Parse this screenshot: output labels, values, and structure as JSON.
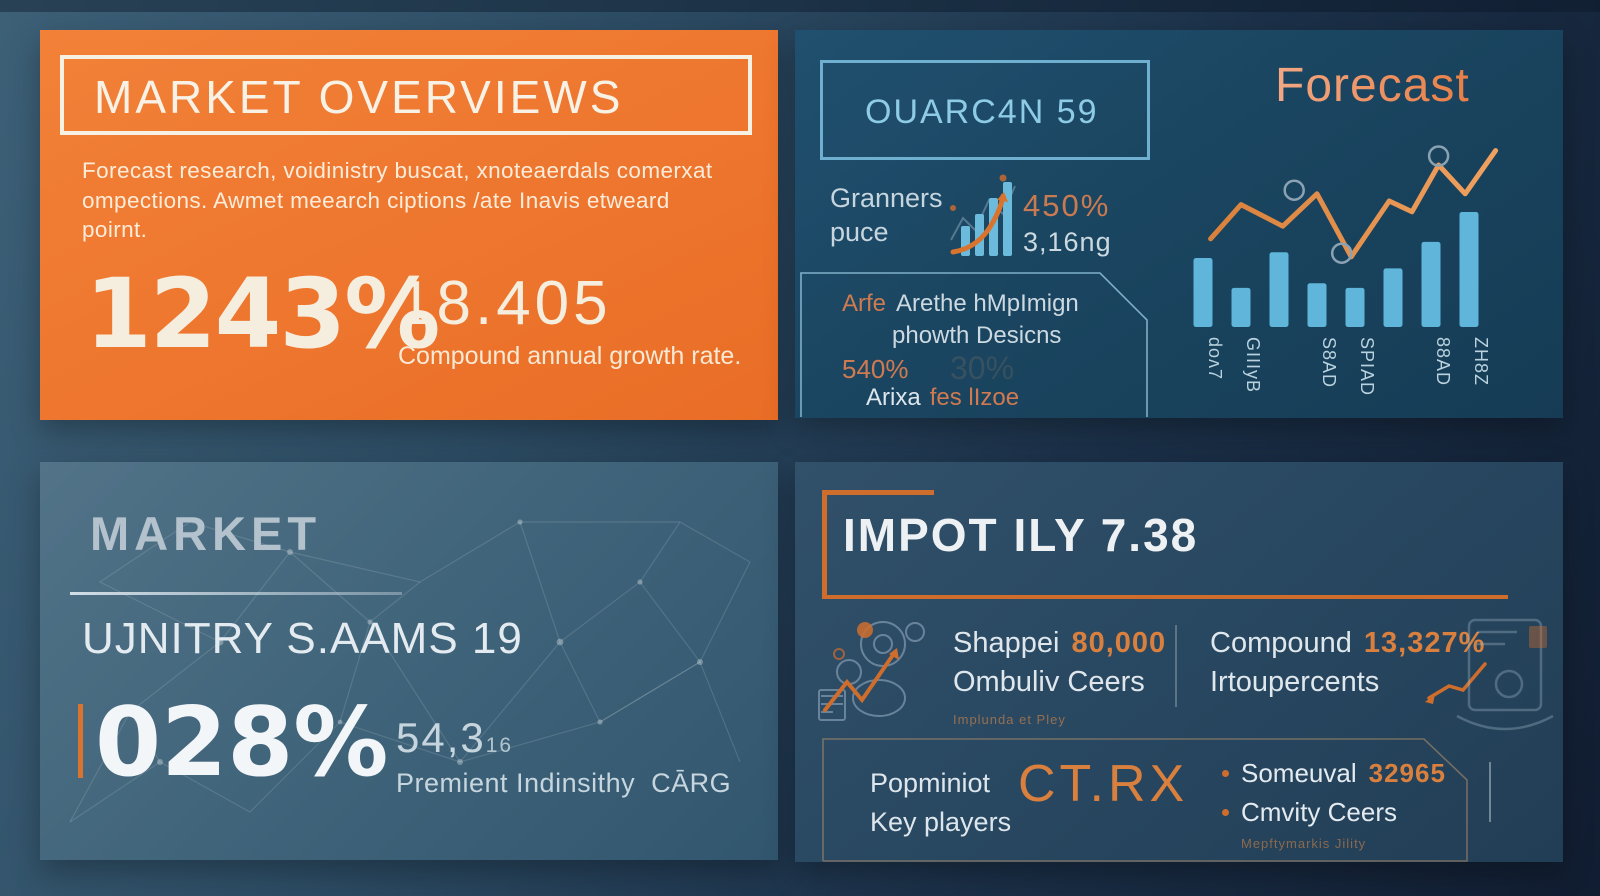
{
  "colors": {
    "orange_panel": "#ee762e",
    "accent_orange": "#d9742f",
    "light_blue": "#8ccae6",
    "bar_blue": "#5fb6da",
    "cream": "#f7f1e3"
  },
  "panels": {
    "market_overview": {
      "title": "MARKET OVERVIEWS",
      "body": "Forecast research, voidinistry buscat, xnoteaerdals comerxat ompections. Awmet meearch ciptions /ate Inavis etweard poirnt.",
      "stat_primary": "1243%",
      "stat_secondary": "18.405",
      "stat_caption": "Compound annual growth rate."
    },
    "quarterly_forecast": {
      "box_title": "OUARC4N 59",
      "label_line1": "Granners",
      "label_line2": "puce",
      "growth_value": "450%",
      "growth_sub": "3,16ng",
      "note_lead": "Arfe",
      "note_line1": "Arethe hMpImign",
      "note_line2": "phowth Desicns",
      "note_value": "540%",
      "note_ghost": "30%",
      "note_line3_gray": "Arixa",
      "note_line3_orange": "fes lIzoe",
      "chart_title": "Forecast"
    },
    "market_share": {
      "title": "MARKET",
      "subtitle": "UJNITRY S.AAMS 19",
      "stat_primary": "028%",
      "stat_secondary": "54,3",
      "stat_secondary_sub": "16",
      "caption": "Premient Indinsithy  CĀRG"
    },
    "impact": {
      "title": "IMPOT ILY 7.38",
      "stat1_label": "Shappei",
      "stat1_value": "80,000",
      "stat1_line2": "Ombuliv Ceers",
      "stat1_note": "Implunda et Pley",
      "stat2_label": "Compound",
      "stat2_value": "13,327%",
      "stat2_line2": "Irtoupercents",
      "players_line1": "Popminiot",
      "players_line2": "Key players",
      "players_logo": "CT.RX",
      "bullet1_label": "Someuval",
      "bullet1_value": "32965",
      "bullet2_label": "Cmvity Ceers",
      "bullets_note": "Mepftymarkis Jility"
    }
  },
  "chart_data": {
    "type": "bar",
    "title": "Forecast",
    "categories": [
      "doʌ7",
      "GIIIyB",
      "",
      "S8AD",
      "SPIAD",
      "",
      "88AD",
      "ZH8Z"
    ],
    "values": [
      60,
      34,
      65,
      38,
      34,
      51,
      74,
      100
    ],
    "ylim": [
      0,
      100
    ],
    "grid": false,
    "legend": "none",
    "bar_color": "#5fb6da",
    "line_color": "#e6893f",
    "series": [
      {
        "name": "trend-line",
        "type": "line",
        "points": [
          {
            "u": 0.2,
            "v": 49
          },
          {
            "u": 1.0,
            "v": 68
          },
          {
            "u": 2.1,
            "v": 56
          },
          {
            "u": 3.0,
            "v": 74
          },
          {
            "u": 3.9,
            "v": 39
          },
          {
            "u": 4.9,
            "v": 70
          },
          {
            "u": 5.5,
            "v": 64
          },
          {
            "u": 6.2,
            "v": 90
          },
          {
            "u": 6.9,
            "v": 74
          },
          {
            "u": 7.7,
            "v": 98
          }
        ]
      }
    ],
    "markers": [
      {
        "u": 2.4,
        "v": 76
      },
      {
        "u": 3.65,
        "v": 41
      },
      {
        "u": 6.2,
        "v": 95
      }
    ]
  }
}
